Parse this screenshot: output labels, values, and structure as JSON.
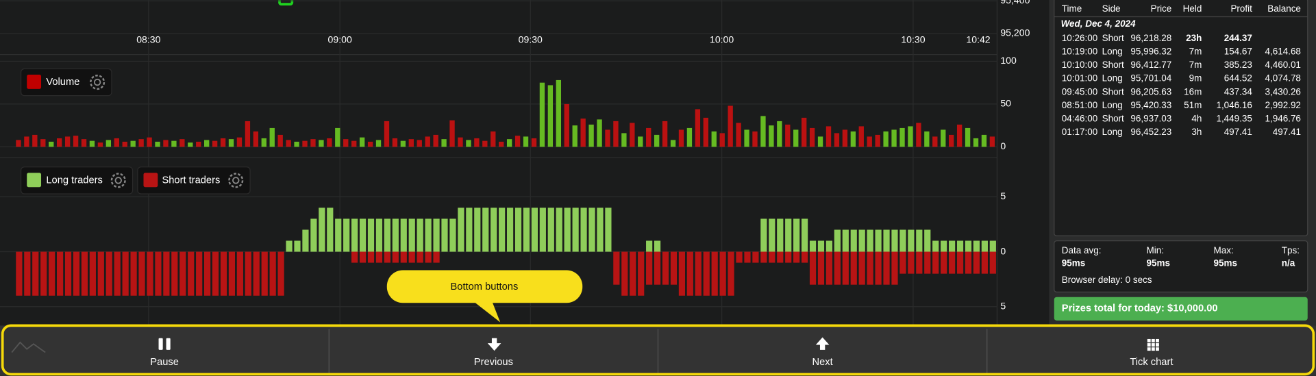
{
  "price_pane": {
    "xticks": [
      "08:30",
      "09:00",
      "09:30",
      "10:00",
      "10:30",
      "10:42"
    ],
    "yticks": [
      "95,400",
      "95,200"
    ]
  },
  "volume_pane": {
    "legend": "Volume",
    "legend_color": "#c00000",
    "ylim": [
      0,
      100
    ],
    "yticks": [
      0,
      50,
      100
    ],
    "bars": [
      [
        8,
        "#b11"
      ],
      [
        12,
        "#b11"
      ],
      [
        14,
        "#b11"
      ],
      [
        9,
        "#b11"
      ],
      [
        6,
        "#6b2"
      ],
      [
        10,
        "#b11"
      ],
      [
        12,
        "#b11"
      ],
      [
        13,
        "#b11"
      ],
      [
        9,
        "#b11"
      ],
      [
        7,
        "#6b2"
      ],
      [
        5,
        "#b11"
      ],
      [
        8,
        "#6b2"
      ],
      [
        10,
        "#b11"
      ],
      [
        6,
        "#b11"
      ],
      [
        7,
        "#6b2"
      ],
      [
        9,
        "#b11"
      ],
      [
        11,
        "#b11"
      ],
      [
        6,
        "#6b2"
      ],
      [
        8,
        "#b11"
      ],
      [
        7,
        "#6b2"
      ],
      [
        9,
        "#b11"
      ],
      [
        5,
        "#6b2"
      ],
      [
        6,
        "#b11"
      ],
      [
        8,
        "#6b2"
      ],
      [
        7,
        "#b11"
      ],
      [
        10,
        "#b11"
      ],
      [
        9,
        "#6b2"
      ],
      [
        11,
        "#b11"
      ],
      [
        30,
        "#b11"
      ],
      [
        18,
        "#b11"
      ],
      [
        10,
        "#6b2"
      ],
      [
        22,
        "#6b2"
      ],
      [
        14,
        "#b11"
      ],
      [
        8,
        "#b11"
      ],
      [
        6,
        "#6b2"
      ],
      [
        7,
        "#b11"
      ],
      [
        9,
        "#b11"
      ],
      [
        8,
        "#6b2"
      ],
      [
        10,
        "#b11"
      ],
      [
        22,
        "#6b2"
      ],
      [
        9,
        "#b11"
      ],
      [
        7,
        "#b11"
      ],
      [
        11,
        "#6b2"
      ],
      [
        6,
        "#b11"
      ],
      [
        8,
        "#6b2"
      ],
      [
        30,
        "#b11"
      ],
      [
        10,
        "#b11"
      ],
      [
        7,
        "#6b2"
      ],
      [
        9,
        "#b11"
      ],
      [
        8,
        "#b11"
      ],
      [
        12,
        "#b11"
      ],
      [
        14,
        "#b11"
      ],
      [
        9,
        "#6b2"
      ],
      [
        31,
        "#b11"
      ],
      [
        11,
        "#b11"
      ],
      [
        8,
        "#6b2"
      ],
      [
        10,
        "#b11"
      ],
      [
        7,
        "#b11"
      ],
      [
        18,
        "#b11"
      ],
      [
        6,
        "#b11"
      ],
      [
        9,
        "#6b2"
      ],
      [
        13,
        "#b11"
      ],
      [
        12,
        "#6b2"
      ],
      [
        10,
        "#b11"
      ],
      [
        75,
        "#6b2"
      ],
      [
        72,
        "#6b2"
      ],
      [
        78,
        "#6b2"
      ],
      [
        50,
        "#b11"
      ],
      [
        25,
        "#6b2"
      ],
      [
        33,
        "#b11"
      ],
      [
        26,
        "#6b2"
      ],
      [
        32,
        "#6b2"
      ],
      [
        20,
        "#b11"
      ],
      [
        30,
        "#b11"
      ],
      [
        16,
        "#6b2"
      ],
      [
        28,
        "#b11"
      ],
      [
        12,
        "#6b2"
      ],
      [
        22,
        "#b11"
      ],
      [
        14,
        "#6b2"
      ],
      [
        30,
        "#b11"
      ],
      [
        8,
        "#6b2"
      ],
      [
        20,
        "#b11"
      ],
      [
        22,
        "#6b2"
      ],
      [
        44,
        "#b11"
      ],
      [
        34,
        "#b11"
      ],
      [
        18,
        "#6b2"
      ],
      [
        16,
        "#b11"
      ],
      [
        48,
        "#b11"
      ],
      [
        28,
        "#b11"
      ],
      [
        20,
        "#6b2"
      ],
      [
        18,
        "#b11"
      ],
      [
        36,
        "#6b2"
      ],
      [
        25,
        "#6b2"
      ],
      [
        30,
        "#6b2"
      ],
      [
        26,
        "#b11"
      ],
      [
        20,
        "#6b2"
      ],
      [
        34,
        "#b11"
      ],
      [
        22,
        "#b11"
      ],
      [
        12,
        "#6b2"
      ],
      [
        24,
        "#b11"
      ],
      [
        16,
        "#b11"
      ],
      [
        20,
        "#b11"
      ],
      [
        18,
        "#6b2"
      ],
      [
        24,
        "#b11"
      ],
      [
        12,
        "#b11"
      ],
      [
        14,
        "#b11"
      ],
      [
        18,
        "#6b2"
      ],
      [
        20,
        "#6b2"
      ],
      [
        22,
        "#6b2"
      ],
      [
        24,
        "#6b2"
      ],
      [
        28,
        "#b11"
      ],
      [
        18,
        "#6b2"
      ],
      [
        12,
        "#b11"
      ],
      [
        20,
        "#6b2"
      ],
      [
        14,
        "#b11"
      ],
      [
        26,
        "#b11"
      ],
      [
        22,
        "#6b2"
      ],
      [
        10,
        "#6b2"
      ],
      [
        14,
        "#6b2"
      ],
      [
        12,
        "#b11"
      ]
    ]
  },
  "traders_pane": {
    "series": [
      {
        "name": "Long traders",
        "color": "#8fce5a"
      },
      {
        "name": "Short traders",
        "color": "#b81414"
      }
    ],
    "ylim": [
      -6,
      6
    ],
    "yticks": [
      5,
      0,
      {
        "value": -5,
        "label": "5"
      }
    ],
    "bars": [
      [
        0,
        -4
      ],
      [
        0,
        -4
      ],
      [
        0,
        -4
      ],
      [
        0,
        -4
      ],
      [
        0,
        -4
      ],
      [
        0,
        -4
      ],
      [
        0,
        -4
      ],
      [
        0,
        -4
      ],
      [
        0,
        -4
      ],
      [
        0,
        -4
      ],
      [
        0,
        -4
      ],
      [
        0,
        -4
      ],
      [
        0,
        -4
      ],
      [
        0,
        -4
      ],
      [
        0,
        -4
      ],
      [
        0,
        -4
      ],
      [
        0,
        -4
      ],
      [
        0,
        -4
      ],
      [
        0,
        -4
      ],
      [
        0,
        -4
      ],
      [
        0,
        -4
      ],
      [
        0,
        -4
      ],
      [
        0,
        -4
      ],
      [
        0,
        -4
      ],
      [
        0,
        -4
      ],
      [
        0,
        -4
      ],
      [
        0,
        -4
      ],
      [
        0,
        -4
      ],
      [
        0,
        -4
      ],
      [
        0,
        -4
      ],
      [
        0,
        -4
      ],
      [
        0,
        -4
      ],
      [
        0,
        -4
      ],
      [
        1,
        0
      ],
      [
        1,
        0
      ],
      [
        2,
        0
      ],
      [
        3,
        0
      ],
      [
        4,
        0
      ],
      [
        4,
        0
      ],
      [
        3,
        0
      ],
      [
        3,
        0
      ],
      [
        3,
        -1
      ],
      [
        3,
        -1
      ],
      [
        3,
        -1
      ],
      [
        3,
        -1
      ],
      [
        3,
        -1
      ],
      [
        3,
        -1
      ],
      [
        3,
        -1
      ],
      [
        3,
        -1
      ],
      [
        3,
        -1
      ],
      [
        3,
        -1
      ],
      [
        3,
        -1
      ],
      [
        3,
        0
      ],
      [
        3,
        0
      ],
      [
        4,
        0
      ],
      [
        4,
        0
      ],
      [
        4,
        0
      ],
      [
        4,
        0
      ],
      [
        4,
        0
      ],
      [
        4,
        0
      ],
      [
        4,
        0
      ],
      [
        4,
        0
      ],
      [
        4,
        0
      ],
      [
        4,
        0
      ],
      [
        4,
        0
      ],
      [
        4,
        0
      ],
      [
        4,
        0
      ],
      [
        4,
        0
      ],
      [
        4,
        0
      ],
      [
        4,
        0
      ],
      [
        4,
        0
      ],
      [
        4,
        0
      ],
      [
        4,
        0
      ],
      [
        0,
        -3
      ],
      [
        0,
        -4
      ],
      [
        0,
        -4
      ],
      [
        0,
        -4
      ],
      [
        1,
        -3
      ],
      [
        1,
        -3
      ],
      [
        0,
        -3
      ],
      [
        0,
        -3
      ],
      [
        0,
        -4
      ],
      [
        0,
        -4
      ],
      [
        0,
        -4
      ],
      [
        0,
        -4
      ],
      [
        0,
        -4
      ],
      [
        0,
        -4
      ],
      [
        0,
        -4
      ],
      [
        0,
        -1
      ],
      [
        0,
        -1
      ],
      [
        0,
        -1
      ],
      [
        3,
        -1
      ],
      [
        3,
        -1
      ],
      [
        3,
        -1
      ],
      [
        3,
        -1
      ],
      [
        3,
        -1
      ],
      [
        3,
        -1
      ],
      [
        1,
        -3
      ],
      [
        1,
        -3
      ],
      [
        1,
        -3
      ],
      [
        2,
        -3
      ],
      [
        2,
        -3
      ],
      [
        2,
        -3
      ],
      [
        2,
        -3
      ],
      [
        2,
        -3
      ],
      [
        2,
        -3
      ],
      [
        2,
        -3
      ],
      [
        2,
        -3
      ],
      [
        2,
        -2
      ],
      [
        2,
        -2
      ],
      [
        2,
        -2
      ],
      [
        2,
        -2
      ],
      [
        1,
        -2
      ],
      [
        1,
        -2
      ],
      [
        1,
        -2
      ],
      [
        1,
        -2
      ],
      [
        1,
        -2
      ],
      [
        1,
        -2
      ],
      [
        1,
        -2
      ],
      [
        1,
        -2
      ]
    ]
  },
  "table": {
    "header": [
      "Time",
      "Side",
      "Price",
      "Held",
      "Profit",
      "Balance"
    ],
    "date": "Wed, Dec 4, 2024",
    "rows": [
      [
        "10:26:00",
        "Short",
        "96,218.28",
        "23h",
        "244.37"
      ],
      [
        "10:19:00",
        "Long",
        "95,996.32",
        "7m",
        "154.67",
        "4,614.68"
      ],
      [
        "10:10:00",
        "Short",
        "96,412.77",
        "7m",
        "385.23",
        "4,460.01"
      ],
      [
        "10:01:00",
        "Long",
        "95,701.04",
        "9m",
        "644.52",
        "4,074.78"
      ],
      [
        "09:45:00",
        "Short",
        "96,205.63",
        "16m",
        "437.34",
        "3,430.26"
      ],
      [
        "08:51:00",
        "Long",
        "95,420.33",
        "51m",
        "1,046.16",
        "2,992.92"
      ],
      [
        "04:46:00",
        "Short",
        "96,937.03",
        "4h",
        "1,449.35",
        "1,946.76"
      ],
      [
        "01:17:00",
        "Long",
        "96,452.23",
        "3h",
        "497.41",
        "497.41"
      ]
    ]
  },
  "stats": [
    {
      "label": "Data avg:",
      "value": "95ms"
    },
    {
      "label": "Min:",
      "value": "95ms"
    },
    {
      "label": "Max:",
      "value": "95ms"
    },
    {
      "label": "Tps:",
      "value": "n/a"
    }
  ],
  "browser_delay": "Browser delay: 0 secs",
  "prizes": "Prizes total for today: $10,000.00",
  "callout": "Bottom buttons",
  "buttons": [
    "Pause",
    "Previous",
    "Next",
    "Tick chart"
  ]
}
